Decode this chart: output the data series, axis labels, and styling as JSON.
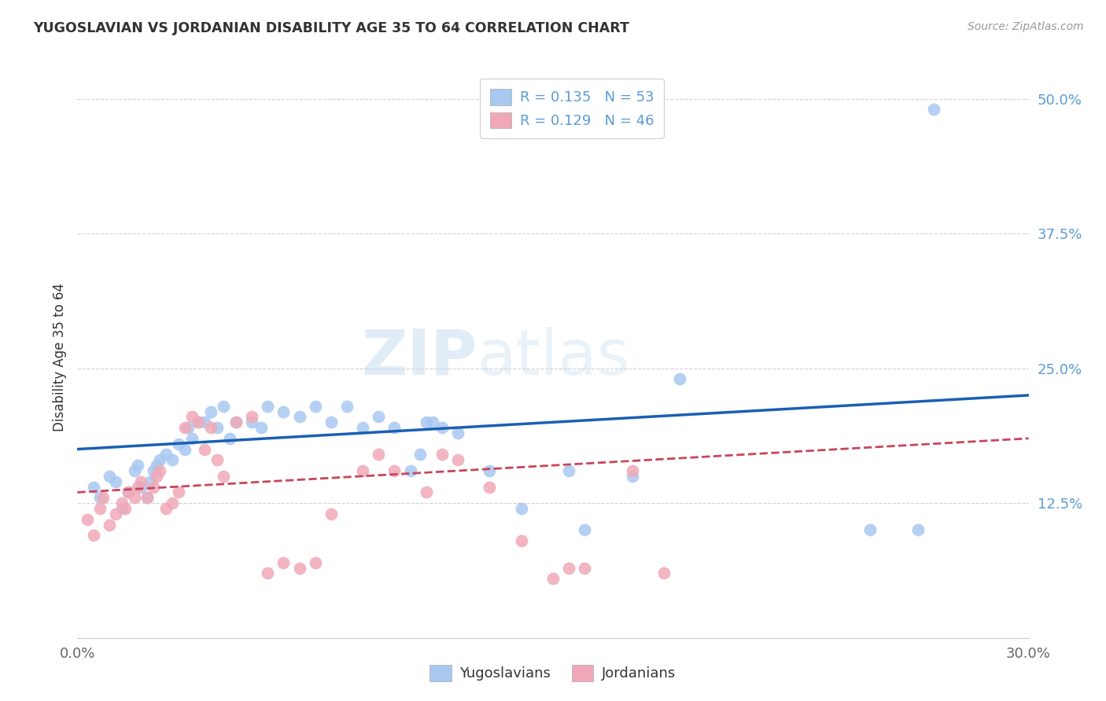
{
  "title": "YUGOSLAVIAN VS JORDANIAN DISABILITY AGE 35 TO 64 CORRELATION CHART",
  "source": "Source: ZipAtlas.com",
  "ylabel": "Disability Age 35 to 64",
  "xlim": [
    0.0,
    0.3
  ],
  "ylim": [
    0.0,
    0.52
  ],
  "xticks": [
    0.0,
    0.05,
    0.1,
    0.15,
    0.2,
    0.25,
    0.3
  ],
  "xticklabels": [
    "0.0%",
    "",
    "",
    "",
    "",
    "",
    "30.0%"
  ],
  "yticks": [
    0.0,
    0.125,
    0.25,
    0.375,
    0.5
  ],
  "yticklabels": [
    "",
    "12.5%",
    "25.0%",
    "37.5%",
    "50.0%"
  ],
  "grid_color": "#d0d0d0",
  "background_color": "#ffffff",
  "yugoslav_color": "#a8c8f0",
  "jordan_color": "#f0a8b8",
  "yugoslav_line_color": "#1a5fb4",
  "jordan_line_color": "#c8455a",
  "legend_r1": "R = 0.135",
  "legend_n1": "N = 53",
  "legend_r2": "R = 0.129",
  "legend_n2": "N = 46",
  "label1": "Yugoslavians",
  "label2": "Jordanians",
  "watermark_zip": "ZIP",
  "watermark_atlas": "atlas",
  "yugoslav_x": [
    0.005,
    0.007,
    0.01,
    0.012,
    0.014,
    0.016,
    0.018,
    0.019,
    0.02,
    0.022,
    0.023,
    0.024,
    0.025,
    0.026,
    0.028,
    0.03,
    0.032,
    0.034,
    0.035,
    0.036,
    0.038,
    0.04,
    0.042,
    0.044,
    0.046,
    0.048,
    0.05,
    0.055,
    0.058,
    0.06,
    0.065,
    0.07,
    0.075,
    0.08,
    0.085,
    0.09,
    0.095,
    0.1,
    0.105,
    0.108,
    0.11,
    0.112,
    0.115,
    0.12,
    0.13,
    0.14,
    0.155,
    0.16,
    0.175,
    0.19,
    0.25,
    0.265,
    0.27
  ],
  "yugoslav_y": [
    0.14,
    0.13,
    0.15,
    0.145,
    0.12,
    0.135,
    0.155,
    0.16,
    0.14,
    0.13,
    0.145,
    0.155,
    0.16,
    0.165,
    0.17,
    0.165,
    0.18,
    0.175,
    0.195,
    0.185,
    0.2,
    0.2,
    0.21,
    0.195,
    0.215,
    0.185,
    0.2,
    0.2,
    0.195,
    0.215,
    0.21,
    0.205,
    0.215,
    0.2,
    0.215,
    0.195,
    0.205,
    0.195,
    0.155,
    0.17,
    0.2,
    0.2,
    0.195,
    0.19,
    0.155,
    0.12,
    0.155,
    0.1,
    0.15,
    0.24,
    0.1,
    0.1,
    0.49
  ],
  "jordan_x": [
    0.003,
    0.005,
    0.007,
    0.008,
    0.01,
    0.012,
    0.014,
    0.015,
    0.016,
    0.018,
    0.019,
    0.02,
    0.022,
    0.024,
    0.025,
    0.026,
    0.028,
    0.03,
    0.032,
    0.034,
    0.036,
    0.038,
    0.04,
    0.042,
    0.044,
    0.046,
    0.05,
    0.055,
    0.06,
    0.065,
    0.07,
    0.075,
    0.08,
    0.09,
    0.095,
    0.1,
    0.11,
    0.115,
    0.12,
    0.13,
    0.14,
    0.15,
    0.155,
    0.16,
    0.175,
    0.185
  ],
  "jordan_y": [
    0.11,
    0.095,
    0.12,
    0.13,
    0.105,
    0.115,
    0.125,
    0.12,
    0.135,
    0.13,
    0.14,
    0.145,
    0.13,
    0.14,
    0.15,
    0.155,
    0.12,
    0.125,
    0.135,
    0.195,
    0.205,
    0.2,
    0.175,
    0.195,
    0.165,
    0.15,
    0.2,
    0.205,
    0.06,
    0.07,
    0.065,
    0.07,
    0.115,
    0.155,
    0.17,
    0.155,
    0.135,
    0.17,
    0.165,
    0.14,
    0.09,
    0.055,
    0.065,
    0.065,
    0.155,
    0.06
  ],
  "yugo_line_x0": 0.0,
  "yugo_line_y0": 0.175,
  "yugo_line_x1": 0.3,
  "yugo_line_y1": 0.225,
  "jord_line_x0": 0.0,
  "jord_line_y0": 0.135,
  "jord_line_x1": 0.3,
  "jord_line_y1": 0.185
}
